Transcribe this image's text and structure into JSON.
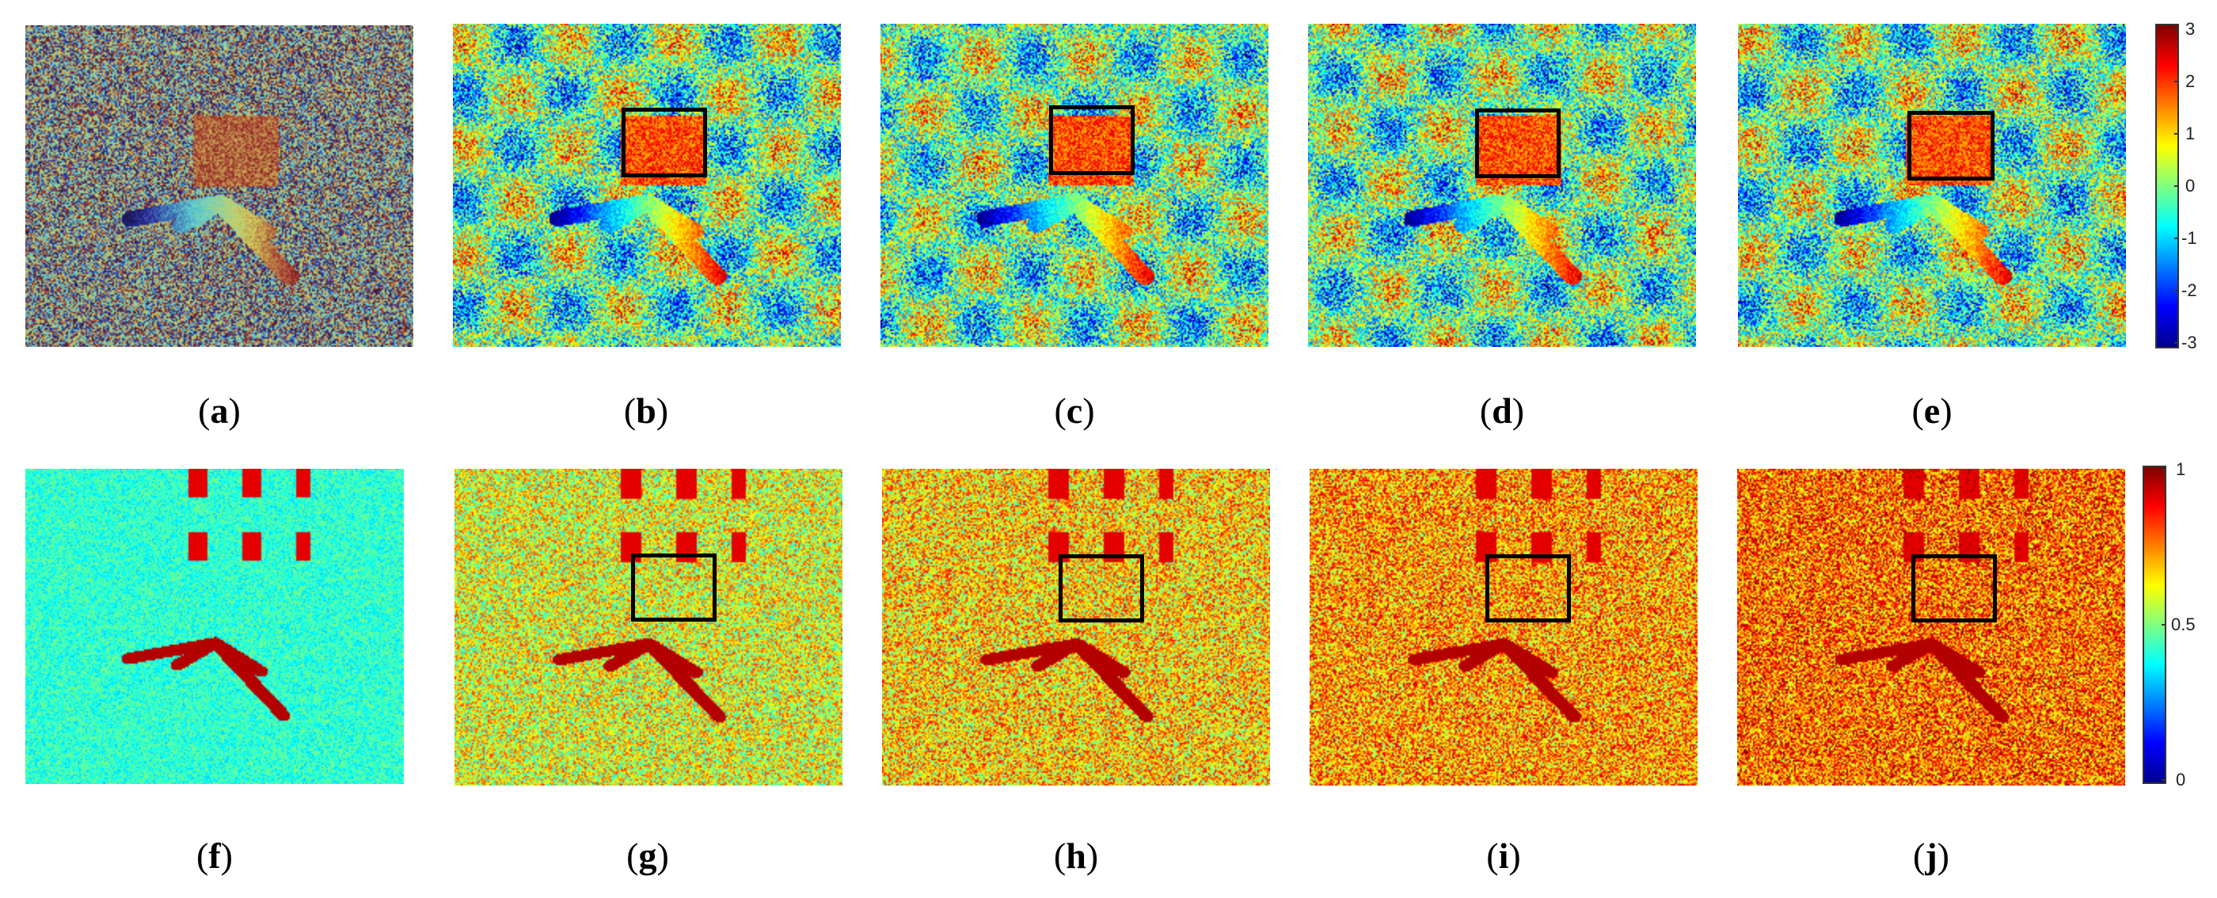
{
  "figure": {
    "rows": [
      {
        "panels": [
          {
            "label": "a",
            "has_roi": false
          },
          {
            "label": "b",
            "has_roi": true
          },
          {
            "label": "c",
            "has_roi": true
          },
          {
            "label": "d",
            "has_roi": true
          },
          {
            "label": "e",
            "has_roi": true
          }
        ],
        "colorbar": {
          "colormap": "jet",
          "ticks": [
            "3",
            "2",
            "1",
            "0",
            "-1",
            "-2",
            "-3"
          ]
        }
      },
      {
        "panels": [
          {
            "label": "f",
            "has_roi": false
          },
          {
            "label": "g",
            "has_roi": true
          },
          {
            "label": "h",
            "has_roi": true
          },
          {
            "label": "i",
            "has_roi": true
          },
          {
            "label": "j",
            "has_roi": true
          }
        ],
        "colorbar": {
          "colormap": "jet",
          "ticks": [
            "1",
            "0.5",
            "0"
          ]
        }
      }
    ]
  }
}
